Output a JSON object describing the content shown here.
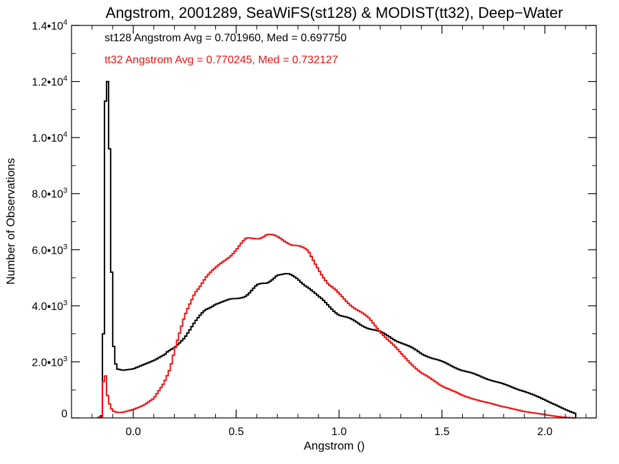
{
  "chart_data": {
    "type": "line",
    "title": "Angstrom, 2001289, SeaWiFS(st128) & MODIST(tt32), Deep−Water",
    "xlabel": "Angstrom ()",
    "ylabel": "Number of Observations",
    "xlim": [
      -0.3,
      2.25
    ],
    "ylim": [
      0,
      14000
    ],
    "xticks": [
      {
        "value": 0.0,
        "label": "0.0"
      },
      {
        "value": 0.5,
        "label": "0.5"
      },
      {
        "value": 1.0,
        "label": "1.0"
      },
      {
        "value": 1.5,
        "label": "1.5"
      },
      {
        "value": 2.0,
        "label": "2.0"
      }
    ],
    "yticks": [
      {
        "value": 0,
        "mantissa": "0",
        "exp": ""
      },
      {
        "value": 2000,
        "mantissa": "2.0•10",
        "exp": "3"
      },
      {
        "value": 4000,
        "mantissa": "4.0•10",
        "exp": "3"
      },
      {
        "value": 6000,
        "mantissa": "6.0•10",
        "exp": "3"
      },
      {
        "value": 8000,
        "mantissa": "8.0•10",
        "exp": "3"
      },
      {
        "value": 10000,
        "mantissa": "1.0•10",
        "exp": "4"
      },
      {
        "value": 12000,
        "mantissa": "1.2•10",
        "exp": "4"
      },
      {
        "value": 14000,
        "mantissa": "1.4•10",
        "exp": "4"
      }
    ],
    "grid": false,
    "series": [
      {
        "name": "st128",
        "color": "#000000",
        "x": [
          -0.17,
          -0.15,
          -0.145,
          -0.14,
          -0.135,
          -0.13,
          -0.125,
          -0.12,
          -0.115,
          -0.11,
          -0.105,
          -0.1,
          -0.09,
          -0.08,
          -0.05,
          0.0,
          0.05,
          0.1,
          0.15,
          0.2,
          0.25,
          0.3,
          0.35,
          0.4,
          0.45,
          0.5,
          0.55,
          0.6,
          0.65,
          0.7,
          0.75,
          0.8,
          0.85,
          0.9,
          0.95,
          1.0,
          1.1,
          1.2,
          1.3,
          1.4,
          1.5,
          1.6,
          1.7,
          1.8,
          1.9,
          2.0,
          2.1,
          2.15
        ],
        "y": [
          0,
          100,
          3000,
          10500,
          11300,
          10600,
          12000,
          11000,
          9600,
          7500,
          5200,
          3000,
          2100,
          1750,
          1700,
          1750,
          1900,
          2050,
          2250,
          2500,
          2900,
          3400,
          3850,
          4100,
          4150,
          4250,
          4400,
          4700,
          4800,
          5150,
          5100,
          4950,
          4700,
          4300,
          4000,
          3700,
          3350,
          3050,
          2700,
          2300,
          2000,
          1700,
          1450,
          1200,
          950,
          650,
          300,
          150
        ]
      },
      {
        "name": "tt32",
        "color": "#ee1111",
        "x": [
          -0.17,
          -0.15,
          -0.145,
          -0.14,
          -0.135,
          -0.13,
          -0.12,
          -0.11,
          -0.1,
          -0.08,
          -0.05,
          0.0,
          0.05,
          0.1,
          0.15,
          0.18,
          0.2,
          0.25,
          0.3,
          0.35,
          0.4,
          0.45,
          0.5,
          0.55,
          0.6,
          0.65,
          0.7,
          0.75,
          0.8,
          0.85,
          0.9,
          0.95,
          1.0,
          1.05,
          1.1,
          1.15,
          1.2,
          1.3,
          1.4,
          1.5,
          1.6,
          1.7,
          1.8,
          1.9,
          2.0,
          2.05,
          2.1,
          2.15
        ],
        "y": [
          0,
          50,
          1300,
          1950,
          1500,
          1000,
          600,
          400,
          250,
          200,
          200,
          300,
          450,
          700,
          1250,
          1800,
          2400,
          3600,
          4500,
          5000,
          5300,
          5700,
          6000,
          6350,
          6450,
          6550,
          6400,
          6300,
          6150,
          5900,
          5350,
          4750,
          4400,
          4100,
          3800,
          3500,
          3100,
          2300,
          1600,
          1150,
          800,
          580,
          400,
          230,
          120,
          60,
          20,
          0
        ]
      }
    ],
    "annotations": [
      {
        "text": "st128 Angstrom Avg = 0.701960, Med = 0.697750",
        "color": "#000000"
      },
      {
        "text": "tt32 Angstrom Avg = 0.770245, Med = 0.732127",
        "color": "#ee1111"
      }
    ]
  }
}
